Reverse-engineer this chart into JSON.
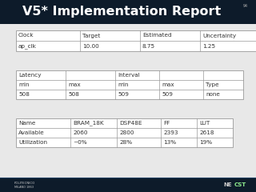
{
  "title": "V5* Implementation Report",
  "slide_num": "94",
  "title_bg": "#0d1b2a",
  "title_color": "#ffffff",
  "body_bg": "#e8e8e8",
  "table1": {
    "headers": [
      "Clock",
      "Target",
      "Estimated",
      "Uncertainty"
    ],
    "rows": [
      [
        "ap_clk",
        "10.00",
        "8.75",
        "1.25"
      ]
    ]
  },
  "table2": {
    "header_row1": [
      "Latency",
      "",
      "Interval",
      "",
      ""
    ],
    "header_row2": [
      "min",
      "max",
      "min",
      "max",
      "Type"
    ],
    "rows": [
      [
        "508",
        "508",
        "509",
        "509",
        "none"
      ]
    ]
  },
  "table3": {
    "headers": [
      "Name",
      "BRAM_18K",
      "DSP48E",
      "FF",
      "LUT"
    ],
    "rows": [
      [
        "Available",
        "2060",
        "2800",
        "2393",
        "2618"
      ],
      [
        "Utilization",
        "~0%",
        "28%",
        "13%",
        "19%"
      ]
    ]
  },
  "table_bg": "#ffffff",
  "table_border": "#999999",
  "header_text": "#333333",
  "cell_text": "#333333",
  "font_size_title": 11.5,
  "font_size_table": 5.2,
  "footer_bar_color": "#0d1b2a",
  "footer_line_color": "#1a3a5c"
}
